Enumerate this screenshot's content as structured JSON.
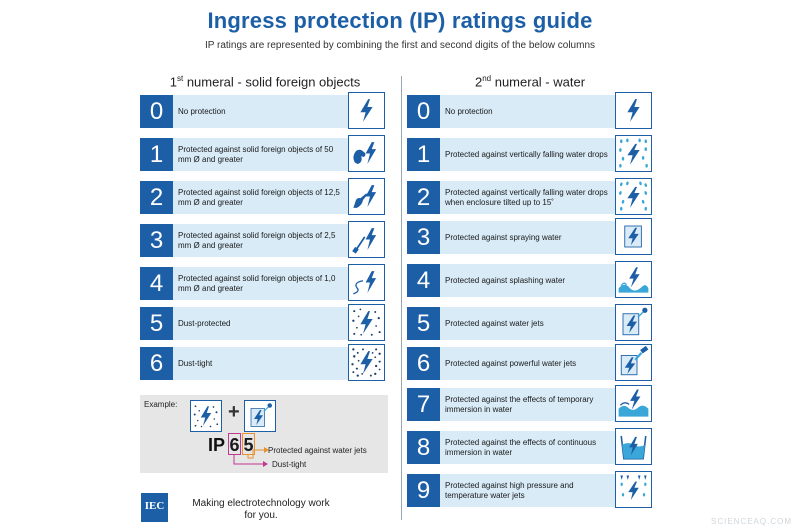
{
  "title": "Ingress protection (IP) ratings guide",
  "subtitle": "IP ratings are represented by combining the first and second digits of the below columns",
  "left": {
    "heading_prefix": "1",
    "heading_sup": "st",
    "heading_rest": " numeral - solid foreign objects",
    "rows": [
      {
        "num": "0",
        "text": "No protection",
        "icon": "lightning-icon"
      },
      {
        "num": "1",
        "text": "Protected against solid foreign objects of 50 mm Ø and greater",
        "icon": "hand-icon"
      },
      {
        "num": "2",
        "text": "Protected against solid foreign objects of 12,5 mm Ø and greater",
        "icon": "finger-icon"
      },
      {
        "num": "3",
        "text": "Protected against solid foreign objects of 2,5 mm Ø and greater",
        "icon": "screwdriver-icon"
      },
      {
        "num": "4",
        "text": "Protected against solid foreign objects of 1,0 mm Ø and greater",
        "icon": "wire-icon"
      },
      {
        "num": "5",
        "text": "Dust-protected",
        "icon": "dust-icon"
      },
      {
        "num": "6",
        "text": "Dust-tight",
        "icon": "dense-dust-icon"
      }
    ]
  },
  "right": {
    "heading_prefix": "2",
    "heading_sup": "nd",
    "heading_rest": " numeral - water",
    "rows": [
      {
        "num": "0",
        "text": "No protection",
        "icon": "lightning-icon"
      },
      {
        "num": "1",
        "text": "Protected against vertically falling water drops",
        "icon": "falling-drops-icon"
      },
      {
        "num": "2",
        "text": "Protected against vertically falling water drops when enclosure tilted up to 15˚",
        "icon": "tilted-drops-icon"
      },
      {
        "num": "3",
        "text": "Protected against spraying water",
        "icon": "spray-icon"
      },
      {
        "num": "4",
        "text": "Protected against splashing water",
        "icon": "splash-icon"
      },
      {
        "num": "5",
        "text": "Protected against water jets",
        "icon": "water-jet-icon"
      },
      {
        "num": "6",
        "text": "Protected against powerful water jets",
        "icon": "powerful-jet-icon"
      },
      {
        "num": "7",
        "text": "Protected against the effects of temporary immersion in water",
        "icon": "temporary-immersion-icon"
      },
      {
        "num": "8",
        "text": "Protected against the effects of continuous immersion in water",
        "icon": "continuous-immersion-icon"
      },
      {
        "num": "9",
        "text": "Protected against high pressure and temperature water jets",
        "icon": "high-pressure-jet-icon"
      }
    ]
  },
  "example": {
    "label": "Example:",
    "plus": "+",
    "ip": "IP",
    "digit1": "6",
    "digit2": "5",
    "note_digit2": "Protected against water jets",
    "note_digit1": "Dust-tight"
  },
  "footer": {
    "logo": "IEC",
    "tagline": "Making  electrotechnology work for you."
  },
  "watermark": "SCIENCEAQ.COM",
  "colors": {
    "brand_blue": "#1d5fa7",
    "row_background": "#d8ebf7",
    "example_background": "#e6e6e6",
    "digit1_border": "#c2378f",
    "digit2_border": "#e8912d"
  }
}
